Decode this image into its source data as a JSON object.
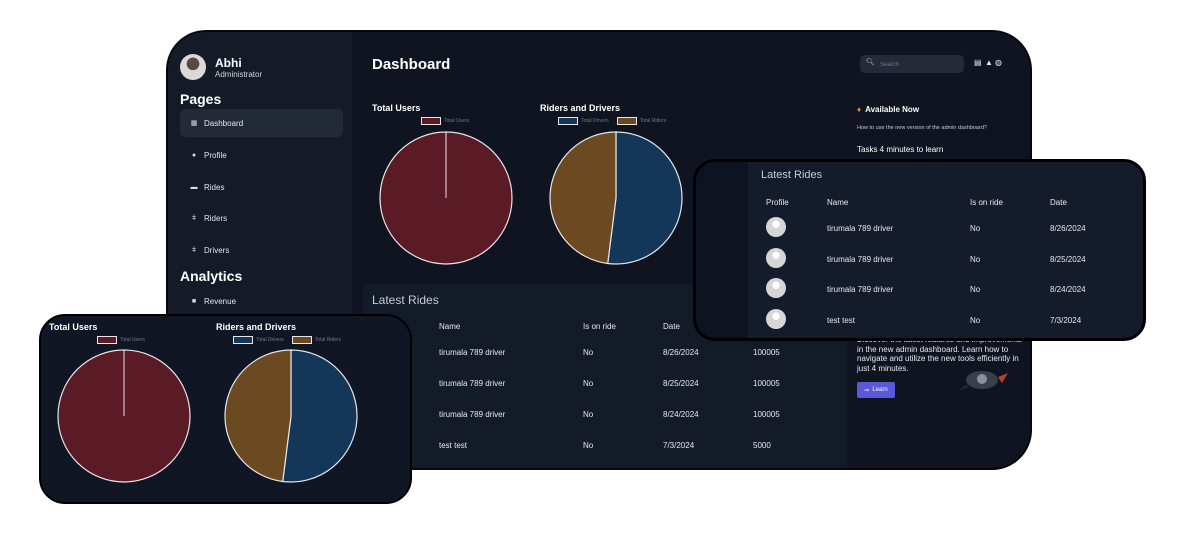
{
  "user": {
    "name": "Abhi",
    "role": "Administrator"
  },
  "sidebar": {
    "pages_title": "Pages",
    "analytics_title": "Analytics",
    "items": [
      {
        "label": "Dashboard",
        "icon": "grid-icon"
      },
      {
        "label": "Profile",
        "icon": "user-circle-icon"
      },
      {
        "label": "Rides",
        "icon": "car-icon"
      },
      {
        "label": "Riders",
        "icon": "person-icon"
      },
      {
        "label": "Drivers",
        "icon": "person-icon"
      }
    ],
    "analytics_items": [
      {
        "label": "Revenue",
        "icon": "briefcase-icon"
      }
    ]
  },
  "header": {
    "title": "Dashboard",
    "search_placeholder": "Search",
    "icons": [
      "message-icon",
      "bell-icon",
      "globe-icon"
    ]
  },
  "charts": {
    "total_users": {
      "title": "Total Users",
      "legend": [
        "Total Users"
      ]
    },
    "riders_drivers": {
      "title": "Riders and Drivers",
      "legend": [
        "Total Drivers",
        "Total Riders"
      ]
    }
  },
  "chart_data": [
    {
      "type": "pie",
      "title": "Total Users",
      "labels": [
        "Total Users"
      ],
      "values": [
        100
      ],
      "colors": [
        "#5a1b27"
      ]
    },
    {
      "type": "pie",
      "title": "Riders and Drivers",
      "labels": [
        "Total Drivers",
        "Total Riders"
      ],
      "values": [
        52,
        48
      ],
      "colors": [
        "#133659",
        "#6b4a22"
      ]
    }
  ],
  "latest_rides": {
    "title": "Latest Rides",
    "columns": [
      "Profile",
      "Name",
      "Is on ride",
      "Date"
    ],
    "rows": [
      {
        "name": "tirumala 789 driver",
        "on_ride": "No",
        "date": "8/26/2024",
        "amount": "100005"
      },
      {
        "name": "tirumala 789 driver",
        "on_ride": "No",
        "date": "8/25/2024",
        "amount": "100005"
      },
      {
        "name": "tirumala 789 driver",
        "on_ride": "No",
        "date": "8/24/2024",
        "amount": "100005"
      },
      {
        "name": "test test",
        "on_ride": "No",
        "date": "7/3/2024",
        "amount": "5000"
      }
    ]
  },
  "right_panel": {
    "title": "Available Now",
    "question": "How to use the new version of the admin dashboard?",
    "tasks": "Tasks 4 minutes to learn",
    "description": "Discover the latest features and improvements in the new admin dashboard. Learn how to navigate and utilize the new tools efficiently in just 4 minutes.",
    "button": "Learn"
  }
}
